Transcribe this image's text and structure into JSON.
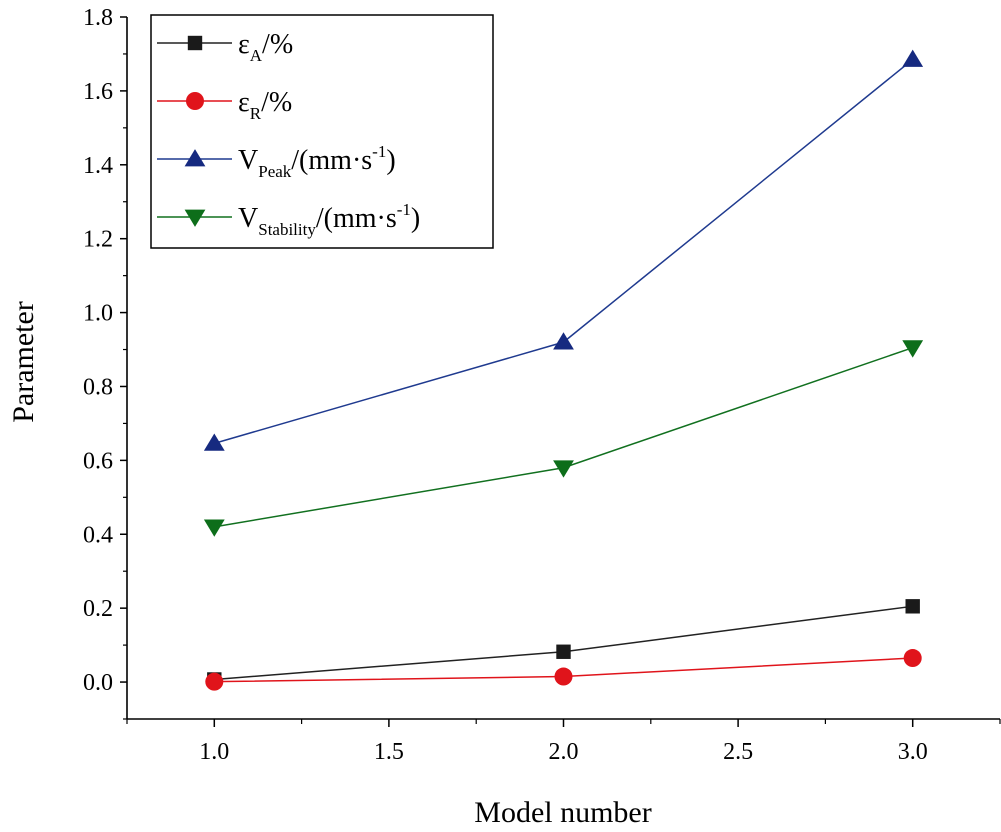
{
  "chart_data": {
    "type": "line",
    "xlabel": "Model number",
    "ylabel": "Parameter",
    "xlim": [
      0.75,
      3.25
    ],
    "ylim": [
      -0.1,
      1.8
    ],
    "x_ticks": [
      "1.0",
      "1.5",
      "2.0",
      "2.5",
      "3.0"
    ],
    "y_ticks": [
      "0.0",
      "0.2",
      "0.4",
      "0.6",
      "0.8",
      "1.0",
      "1.2",
      "1.4",
      "1.6",
      "1.8"
    ],
    "legend_position": "top-left",
    "x": [
      1,
      2,
      3
    ],
    "series": [
      {
        "id": "eps_a",
        "name": "εA/%",
        "legend": {
          "base": "ε",
          "sub": "A",
          "rest": "/%"
        },
        "color": "#1a1a1a",
        "line_color": "#222222",
        "marker": "square",
        "values": [
          0.007,
          0.082,
          0.205
        ]
      },
      {
        "id": "eps_r",
        "name": "εR/%",
        "legend": {
          "base": "ε",
          "sub": "R",
          "rest": "/%"
        },
        "color": "#e0141b",
        "line_color": "#e0141b",
        "marker": "circle",
        "values": [
          0.001,
          0.015,
          0.065
        ]
      },
      {
        "id": "v_peak",
        "name": "VPeak/(mm·s-1)",
        "legend": {
          "base": "V",
          "sub": "Peak",
          "rest": "/(mm·s",
          "sup": "-1",
          "close": ")"
        },
        "color": "#162a80",
        "line_color": "#1f3a8f",
        "marker": "triangle-up",
        "values": [
          0.646,
          0.92,
          1.685
        ]
      },
      {
        "id": "v_stability",
        "name": "VStability/(mm·s-1)",
        "legend": {
          "base": "V",
          "sub": "Stability",
          "rest": "/(mm·s",
          "sup": "-1",
          "close": ")"
        },
        "color": "#0d6e1a",
        "line_color": "#11701f",
        "marker": "triangle-down",
        "values": [
          0.42,
          0.58,
          0.905
        ]
      }
    ]
  }
}
